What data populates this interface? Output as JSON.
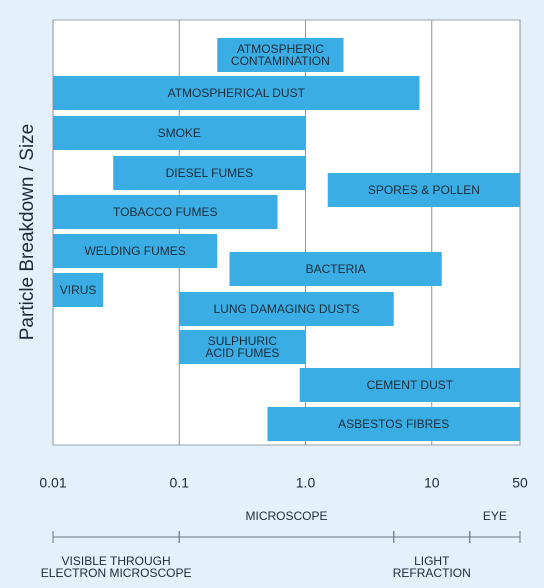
{
  "chart_data": {
    "type": "range-bar",
    "y_label": "Particle Breakdown / Size",
    "categories": [
      [
        "ATMOSPHERIC",
        "CONTAMINATION"
      ],
      "ATMOSPHERICAL DUST",
      "SMOKE",
      "DIESEL FUMES",
      "SPORES & POLLEN",
      "TOBACCO FUMES",
      "WELDING FUMES",
      "BACTERIA",
      "VIRUS",
      "LUNG DAMAGING DUSTS",
      [
        "SULPHURIC",
        "ACID FUMES"
      ],
      "CEMENT DUST",
      "ASBESTOS FIBRES"
    ],
    "values": [
      [
        0.2,
        2
      ],
      [
        0.01,
        8
      ],
      [
        0.01,
        1
      ],
      [
        0.03,
        1
      ],
      [
        1.5,
        50
      ],
      [
        0.01,
        0.6
      ],
      [
        0.01,
        0.2
      ],
      [
        0.25,
        12
      ],
      [
        0.01,
        0.025
      ],
      [
        0.1,
        5
      ],
      [
        0.1,
        1
      ],
      [
        0.9,
        50
      ],
      [
        0.5,
        50
      ]
    ],
    "color": "#3aaee4",
    "log_x": true,
    "xlim": [
      0.01,
      50
    ],
    "xticks": [
      0.01,
      0.1,
      {
        "value": 1,
        "label": "1.0"
      },
      10,
      50
    ],
    "grid": true,
    "ranges": [
      {
        "label": [
          "VISIBLE THROUGH",
          "ELECTRON MICROSCOPE"
        ],
        "from": 0.01,
        "to": 0.1,
        "side": "below"
      },
      {
        "label": "MICROSCOPE",
        "from": 0.1,
        "to": 5,
        "side": "above"
      },
      {
        "label": [
          "LIGHT",
          "REFRACTION"
        ],
        "from": 5,
        "to": 20,
        "side": "below"
      },
      {
        "label": "EYE",
        "from": 20,
        "to": 50,
        "side": "above"
      }
    ]
  }
}
